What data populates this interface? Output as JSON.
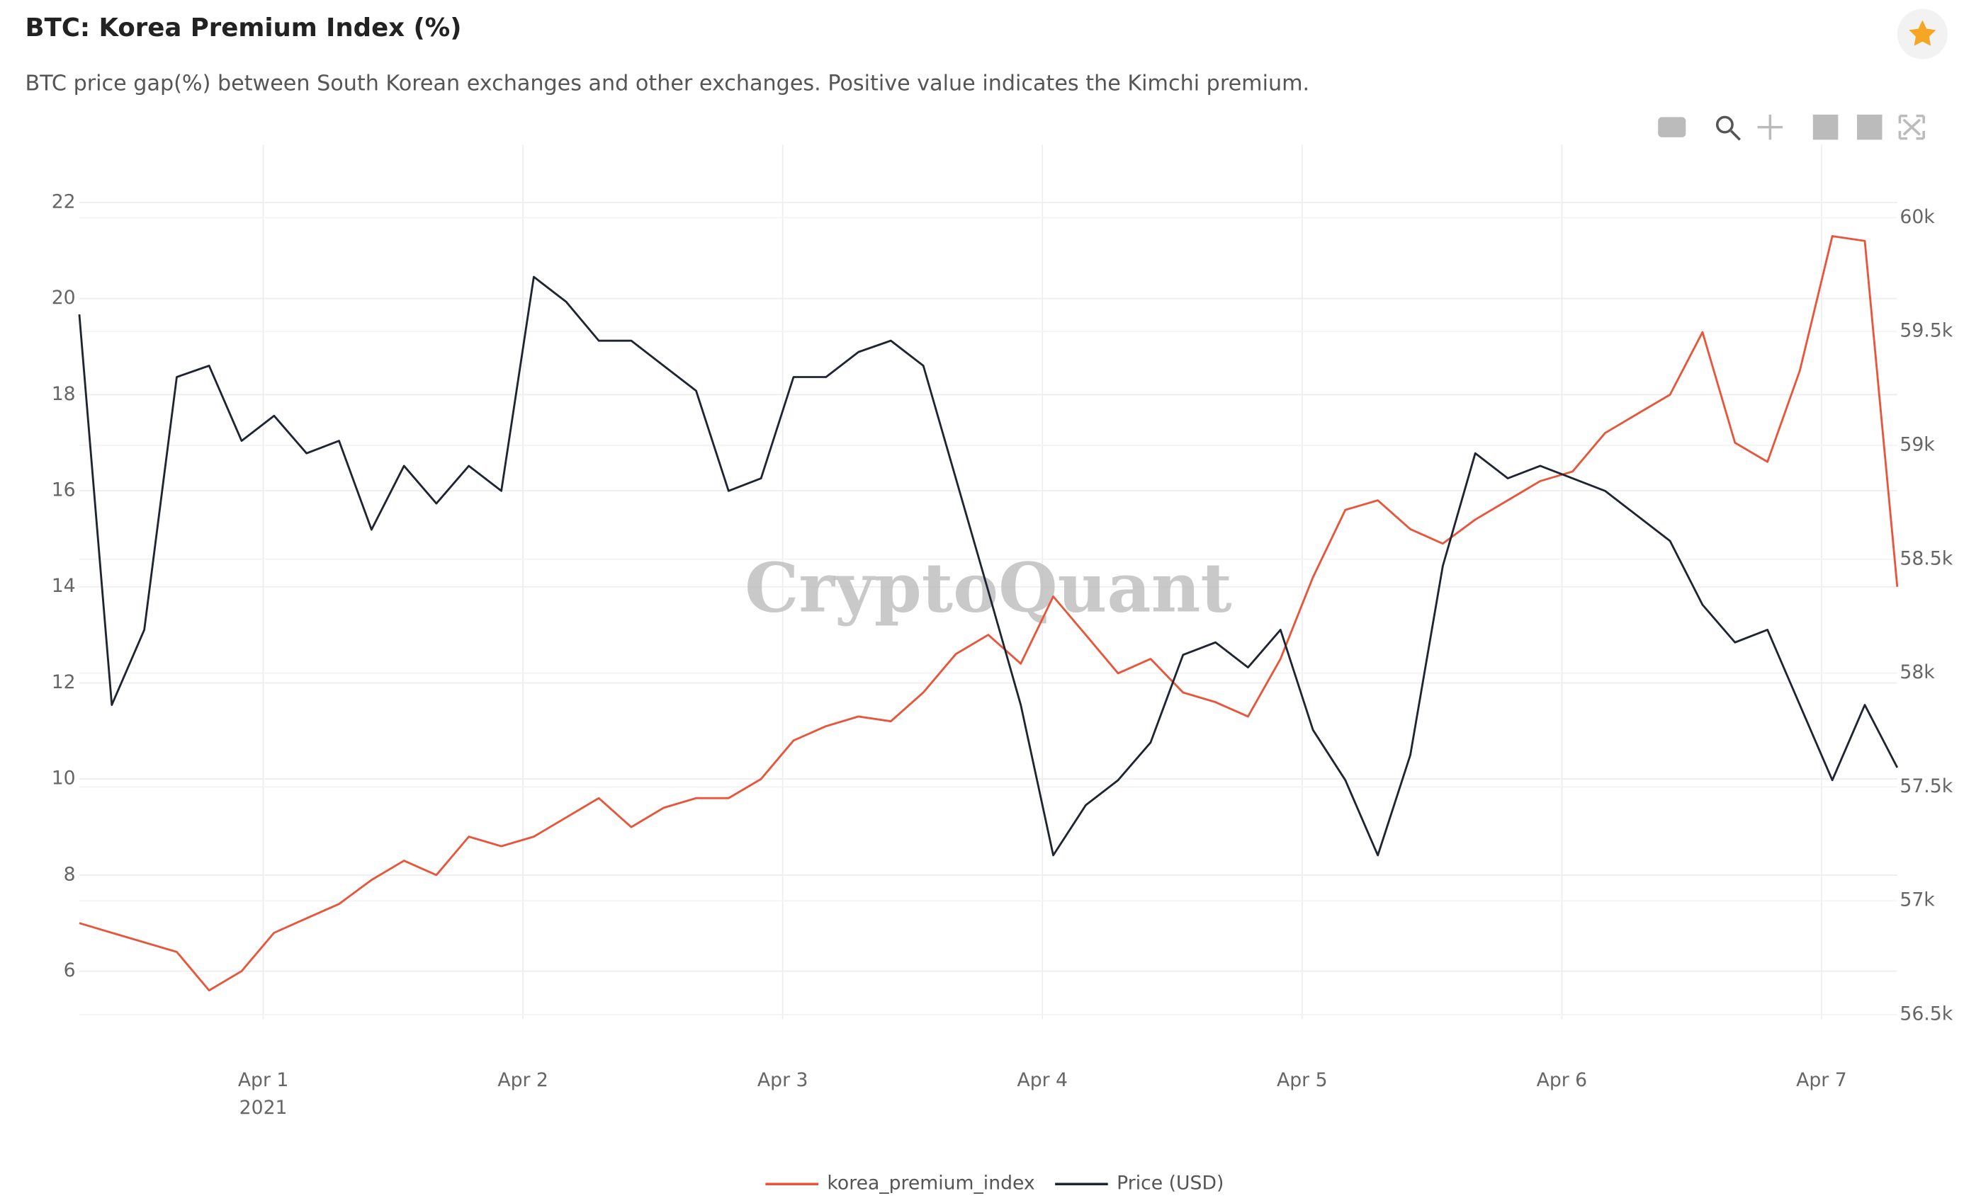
{
  "chart_data": {
    "type": "line",
    "title": "BTC: Korea Premium Index (%)",
    "subtitle": "BTC price gap(%) between South Korean exchanges and other exchanges. Positive value indicates the Kimchi premium.",
    "watermark": "CryptoQuant",
    "x": [
      "2021-03-31T07:00",
      "2021-03-31T10:00",
      "2021-03-31T13:00",
      "2021-03-31T16:00",
      "2021-03-31T19:00",
      "2021-03-31T22:00",
      "2021-04-01T01:00",
      "2021-04-01T04:00",
      "2021-04-01T07:00",
      "2021-04-01T10:00",
      "2021-04-01T13:00",
      "2021-04-01T16:00",
      "2021-04-01T19:00",
      "2021-04-01T22:00",
      "2021-04-02T01:00",
      "2021-04-02T04:00",
      "2021-04-02T07:00",
      "2021-04-02T10:00",
      "2021-04-02T13:00",
      "2021-04-02T16:00",
      "2021-04-02T19:00",
      "2021-04-02T22:00",
      "2021-04-03T01:00",
      "2021-04-03T04:00",
      "2021-04-03T07:00",
      "2021-04-03T10:00",
      "2021-04-03T13:00",
      "2021-04-03T16:00",
      "2021-04-03T19:00",
      "2021-04-03T22:00",
      "2021-04-04T01:00",
      "2021-04-04T04:00",
      "2021-04-04T07:00",
      "2021-04-04T10:00",
      "2021-04-04T13:00",
      "2021-04-04T16:00",
      "2021-04-04T19:00",
      "2021-04-04T22:00",
      "2021-04-05T01:00",
      "2021-04-05T04:00",
      "2021-04-05T07:00",
      "2021-04-05T10:00",
      "2021-04-05T13:00",
      "2021-04-05T16:00",
      "2021-04-05T19:00",
      "2021-04-05T22:00",
      "2021-04-06T01:00",
      "2021-04-06T04:00",
      "2021-04-06T07:00",
      "2021-04-06T10:00",
      "2021-04-06T13:00",
      "2021-04-06T16:00",
      "2021-04-06T19:00",
      "2021-04-06T22:00",
      "2021-04-07T01:00",
      "2021-04-07T04:00",
      "2021-04-07T07:00"
    ],
    "series": [
      {
        "name": "korea_premium_index",
        "color": "#e8553a",
        "axis": "y",
        "values": [
          7.0,
          6.8,
          6.6,
          6.4,
          5.6,
          6.0,
          6.8,
          7.1,
          7.4,
          7.9,
          8.3,
          8.0,
          8.8,
          8.6,
          8.8,
          9.2,
          9.6,
          9.0,
          9.4,
          9.6,
          9.6,
          10.0,
          10.8,
          11.1,
          11.3,
          11.2,
          11.8,
          12.6,
          13.0,
          12.4,
          13.8,
          13.0,
          12.2,
          12.5,
          11.8,
          11.6,
          11.3,
          12.5,
          14.2,
          15.6,
          15.8,
          15.2,
          14.9,
          15.4,
          15.8,
          16.2,
          16.4,
          17.2,
          17.6,
          18.0,
          19.3,
          17.0,
          16.6,
          18.5,
          21.3,
          21.2,
          14.0
        ]
      },
      {
        "name": "Price (USD)",
        "color": "#1f2530",
        "axis": "y2",
        "values": [
          59575,
          57860,
          58190,
          59300,
          59350,
          59020,
          59130,
          58965,
          59020,
          58630,
          58910,
          58745,
          58910,
          58800,
          59740,
          59630,
          59460,
          59460,
          59350,
          59240,
          58800,
          58855,
          59300,
          59300,
          59410,
          59460,
          59350,
          58855,
          58360,
          57860,
          57200,
          57420,
          57530,
          57695,
          58080,
          58135,
          58025,
          58190,
          57750,
          57530,
          57200,
          57640,
          58470,
          58965,
          58855,
          58910,
          58855,
          58800,
          58690,
          58580,
          58300,
          58135,
          58190,
          57860,
          57530,
          57860,
          57585
        ]
      }
    ],
    "xlim": [
      "2021-03-31T07:00",
      "2021-04-07T07:00"
    ],
    "xticks": [
      {
        "value": "2021-04-01T00:00",
        "label": "Apr 1"
      },
      {
        "value": "2021-04-02T00:00",
        "label": "Apr 2"
      },
      {
        "value": "2021-04-03T00:00",
        "label": "Apr 3"
      },
      {
        "value": "2021-04-04T00:00",
        "label": "Apr 4"
      },
      {
        "value": "2021-04-05T00:00",
        "label": "Apr 5"
      },
      {
        "value": "2021-04-06T00:00",
        "label": "Apr 6"
      },
      {
        "value": "2021-04-07T00:00",
        "label": "Apr 7"
      }
    ],
    "x_year": "2021",
    "ylim": [
      5,
      23.2
    ],
    "yticks": [
      6,
      8,
      10,
      12,
      14,
      16,
      18,
      20,
      22
    ],
    "y2lim": [
      56480,
      60320
    ],
    "y2ticks": [
      {
        "value": 56500,
        "label": "56.5k"
      },
      {
        "value": 57000,
        "label": "57k"
      },
      {
        "value": 57500,
        "label": "57.5k"
      },
      {
        "value": 58000,
        "label": "58k"
      },
      {
        "value": 58500,
        "label": "58.5k"
      },
      {
        "value": 59000,
        "label": "59k"
      },
      {
        "value": 59500,
        "label": "59.5k"
      },
      {
        "value": 60000,
        "label": "60k"
      }
    ],
    "grid": true
  }
}
